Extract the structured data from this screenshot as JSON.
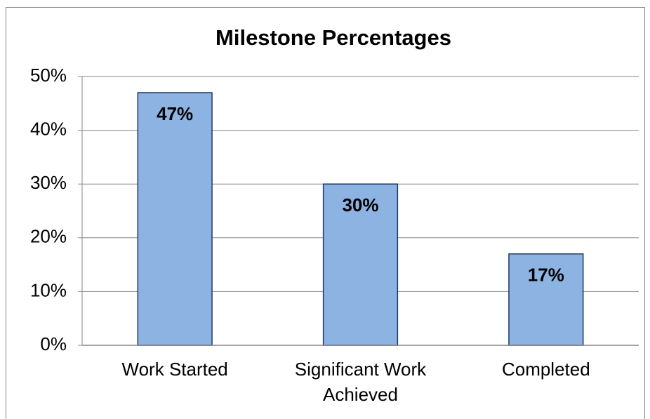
{
  "chart_data": {
    "type": "bar",
    "title": "Milestone Percentages",
    "categories": [
      "Work Started",
      "Significant Work Achieved",
      "Completed"
    ],
    "values": [
      47,
      30,
      17
    ],
    "value_labels": [
      "47%",
      "30%",
      "17%"
    ],
    "color": "#8db3e2",
    "ylim": [
      0,
      50
    ],
    "yticks": [
      {
        "value": 0,
        "label": "0%"
      },
      {
        "value": 10,
        "label": "10%"
      },
      {
        "value": 20,
        "label": "20%"
      },
      {
        "value": 30,
        "label": "30%"
      },
      {
        "value": 40,
        "label": "40%"
      },
      {
        "value": 50,
        "label": "50%"
      }
    ],
    "grid": true
  }
}
